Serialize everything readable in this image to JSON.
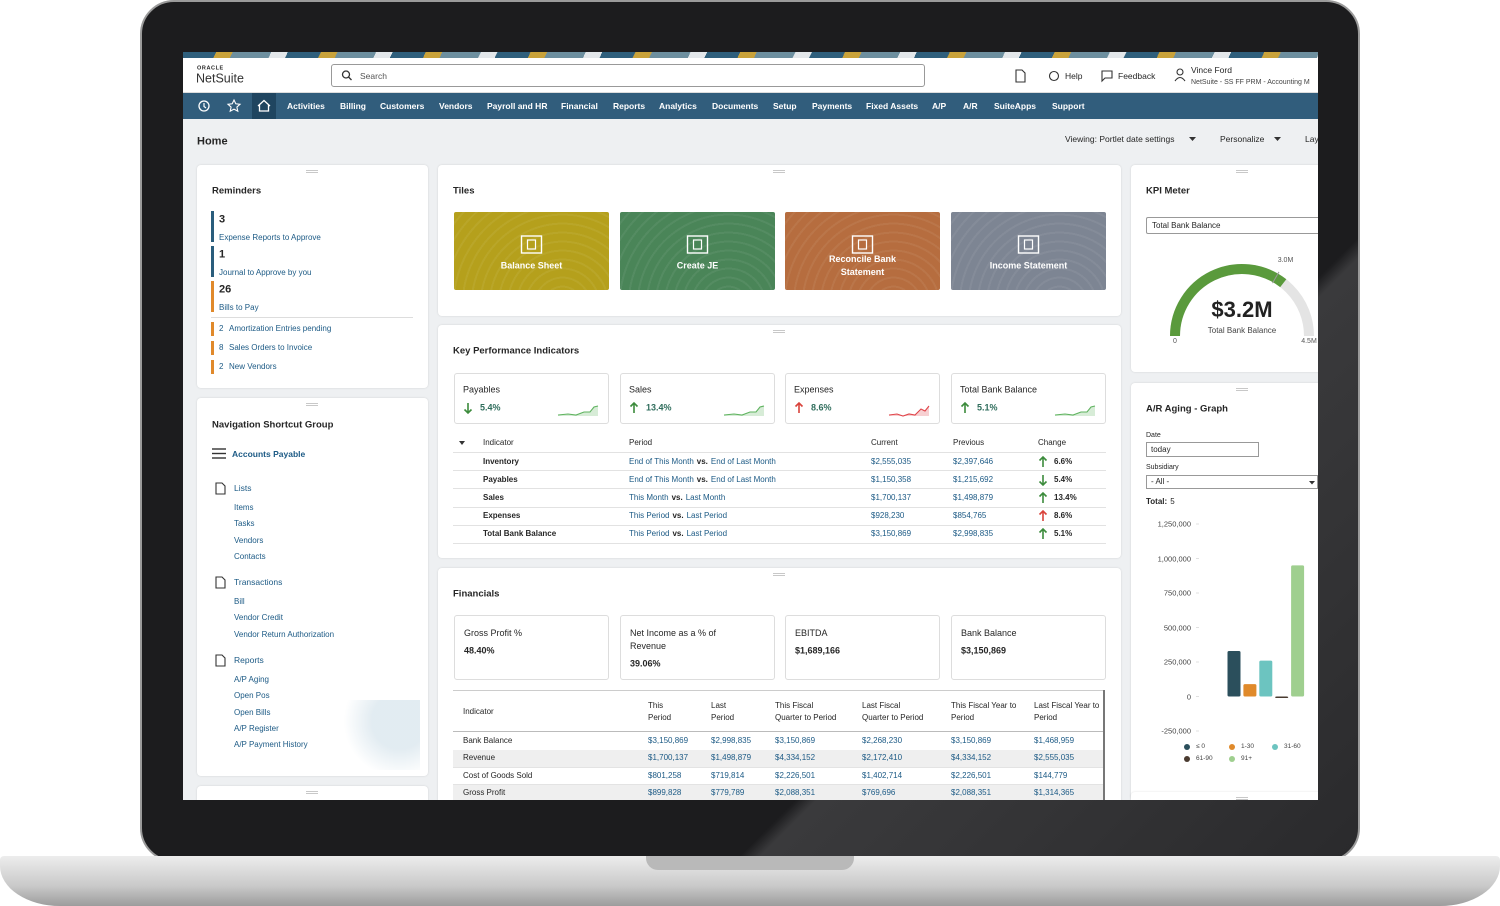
{
  "header": {
    "logo_top": "ORACLE",
    "logo": "NetSuite",
    "search": "Search",
    "help": "Help",
    "feedback": "Feedback",
    "user_name": "Vince Ford",
    "user_role": "NetSuite - SS FF PRM - Accounting M"
  },
  "nav": [
    "Activities",
    "Billing",
    "Customers",
    "Vendors",
    "Payroll and HR",
    "Financial",
    "Reports",
    "Analytics",
    "Documents",
    "Setup",
    "Payments",
    "Fixed Assets",
    "A/P",
    "A/R",
    "SuiteApps",
    "Support"
  ],
  "page": {
    "title": "Home",
    "viewing": "Viewing: Portlet date settings",
    "personalize": "Personalize",
    "layout": "Lay"
  },
  "reminders": {
    "title": "Reminders",
    "featured": [
      {
        "count": 3,
        "label": "Expense Reports to Approve",
        "color": "#2a5d7c"
      },
      {
        "count": 1,
        "label": "Journal to Approve by you",
        "color": "#2a5d7c"
      },
      {
        "count": 26,
        "label": "Bills to Pay",
        "color": "#e0892b"
      }
    ],
    "others": [
      {
        "count": 2,
        "label": "Amortization Entries pending",
        "color": "#e0892b"
      },
      {
        "count": 8,
        "label": "Sales Orders to Invoice",
        "color": "#e0892b"
      },
      {
        "count": 2,
        "label": "New Vendors",
        "color": "#e0892b"
      }
    ]
  },
  "shortcuts": {
    "title": "Navigation Shortcut Group",
    "group": "Accounts Payable",
    "sections": [
      {
        "title": "Lists",
        "items": [
          "Items",
          "Tasks",
          "Vendors",
          "Contacts"
        ]
      },
      {
        "title": "Transactions",
        "items": [
          "Bill",
          "Vendor Credit",
          "Vendor Return Authorization"
        ]
      },
      {
        "title": "Reports",
        "items": [
          "A/P Aging",
          "Open Pos",
          "Open Bills",
          "A/P Register",
          "A/P Payment History"
        ]
      }
    ]
  },
  "tiles": {
    "title": "Tiles",
    "items": [
      {
        "label": "Balance Sheet",
        "color": "#b5a01c"
      },
      {
        "label": "Create JE",
        "color": "#4a8558"
      },
      {
        "label": "Reconcile Bank Statement",
        "color": "#b66d3f"
      },
      {
        "label": "Income Statement",
        "color": "#7d8593"
      }
    ]
  },
  "kpi": {
    "title": "Key Performance Indicators",
    "cards": [
      {
        "label": "Payables",
        "change": "5.4%",
        "trend": "down",
        "arrow_color": "#3c8b3c"
      },
      {
        "label": "Sales",
        "change": "13.4%",
        "trend": "up",
        "arrow_color": "#3c8b3c"
      },
      {
        "label": "Expenses",
        "change": "8.6%",
        "trend": "up",
        "arrow_color": "#d9433b"
      },
      {
        "label": "Total Bank Balance",
        "change": "5.1%",
        "trend": "up",
        "arrow_color": "#3c8b3c"
      }
    ],
    "columns": [
      "Indicator",
      "Period",
      "Current",
      "Previous",
      "Change"
    ],
    "rows": [
      {
        "indicator": "Inventory",
        "period_a": "End of This Month",
        "vs": "vs.",
        "period_b": "End of Last Month",
        "current": "$2,555,035",
        "previous": "$2,397,646",
        "change": "6.6%",
        "trend": "up",
        "arrow_color": "#3c8b3c"
      },
      {
        "indicator": "Payables",
        "period_a": "End of This Month",
        "vs": "vs.",
        "period_b": "End of Last Month",
        "current": "$1,150,358",
        "previous": "$1,215,692",
        "change": "5.4%",
        "trend": "down",
        "arrow_color": "#3c8b3c"
      },
      {
        "indicator": "Sales",
        "period_a": "This Month",
        "vs": "vs.",
        "period_b": "Last Month",
        "current": "$1,700,137",
        "previous": "$1,498,879",
        "change": "13.4%",
        "trend": "up",
        "arrow_color": "#3c8b3c"
      },
      {
        "indicator": "Expenses",
        "period_a": "This Period",
        "vs": "vs.",
        "period_b": "Last Period",
        "current": "$928,230",
        "previous": "$854,765",
        "change": "8.6%",
        "trend": "up",
        "arrow_color": "#d9433b"
      },
      {
        "indicator": "Total Bank Balance",
        "period_a": "This Period",
        "vs": "vs.",
        "period_b": "Last Period",
        "current": "$3,150,869",
        "previous": "$2,998,835",
        "change": "5.1%",
        "trend": "up",
        "arrow_color": "#3c8b3c"
      }
    ]
  },
  "financials": {
    "title": "Financials",
    "cards": [
      {
        "label": "Gross Profit %",
        "value": "48.40%"
      },
      {
        "label": "Net Income as a % of Revenue",
        "value": "39.06%"
      },
      {
        "label": "EBITDA",
        "value": "$1,689,166"
      },
      {
        "label": "Bank Balance",
        "value": "$3,150,869"
      }
    ],
    "columns": [
      "Indicator",
      "This Period",
      "Last Period",
      "This Fiscal Quarter to Period",
      "Last Fiscal Quarter to Period",
      "This Fiscal Year to Period",
      "Last Fiscal Year to Period"
    ],
    "rows": [
      [
        "Bank Balance",
        "$3,150,869",
        "$2,998,835",
        "$3,150,869",
        "$2,268,230",
        "$3,150,869",
        "$1,468,959"
      ],
      [
        "Revenue",
        "$1,700,137",
        "$1,498,879",
        "$4,334,152",
        "$2,172,410",
        "$4,334,152",
        "$2,555,035"
      ],
      [
        "Cost of Goods Sold",
        "$801,258",
        "$719,814",
        "$2,226,501",
        "$1,402,714",
        "$2,226,501",
        "$144,779"
      ],
      [
        "Gross Profit",
        "$899,828",
        "$779,789",
        "$2,088,351",
        "$769,696",
        "$2,088,351",
        "$1,314,365"
      ]
    ]
  },
  "kpi_meter": {
    "title": "KPI Meter",
    "select": "Total Bank Balance",
    "gauge": {
      "type": "gauge",
      "value": 3.2,
      "value_label": "$3.2M",
      "lim": [
        0,
        4.5
      ],
      "ticks": [
        0,
        {
          "value": 3,
          "label": "3.0M"
        },
        {
          "value": 4.5,
          "label": "4.5M"
        }
      ],
      "color": "#5a9a3c",
      "caption": "Total Bank Balance"
    }
  },
  "ar_aging": {
    "title": "A/R Aging - Graph",
    "date_label": "Date",
    "date_value": "today",
    "subsidiary_label": "Subsidiary",
    "subsidiary_value": "- All -",
    "total_label": "Total:",
    "total": 5
  },
  "chart_data": {
    "type": "bar",
    "categories": [
      "≤ 0",
      "1-30",
      "31-60",
      "61-90",
      "91+"
    ],
    "values": [
      330000,
      90000,
      260000,
      -10000,
      950000
    ],
    "colors": [
      "#2b4f5c",
      "#e08a2b",
      "#6cc4c0",
      "#4a3b30",
      "#9fcf8f"
    ],
    "ylim": [
      -250000,
      1250000
    ],
    "yticks": [
      {
        "value": -250000,
        "label": "-250,000"
      },
      0,
      {
        "value": 250000,
        "label": "250,000"
      },
      {
        "value": 500000,
        "label": "500,000"
      },
      {
        "value": 750000,
        "label": "750,000"
      },
      {
        "value": 1000000,
        "label": "1,000,000"
      },
      {
        "value": 1250000,
        "label": "1,250,000"
      }
    ],
    "legend": "bottom"
  }
}
